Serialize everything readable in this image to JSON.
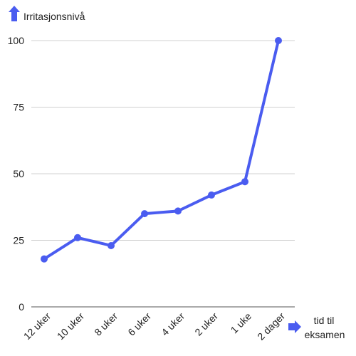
{
  "chart_data": {
    "type": "line",
    "title": "",
    "ylabel": "Irritasjonsnivå",
    "xlabel_lines": [
      "tid til",
      "eksamen"
    ],
    "categories": [
      "12 uker",
      "10 uker",
      "8 uker",
      "6 uker",
      "4 uker",
      "2 uker",
      "1 uke",
      "2 dager"
    ],
    "values": [
      18,
      26,
      23,
      35,
      36,
      42,
      47,
      100
    ],
    "ylim": [
      0,
      100
    ],
    "yticks": [
      0,
      25,
      50,
      75,
      100
    ],
    "grid": true,
    "line_color": "#4a5cf0",
    "arrow_color": "#4a5cf0",
    "grid_color": "#d0d0d0",
    "y_axis_icon": "arrow-up-icon",
    "x_axis_icon": "arrow-right-icon"
  }
}
